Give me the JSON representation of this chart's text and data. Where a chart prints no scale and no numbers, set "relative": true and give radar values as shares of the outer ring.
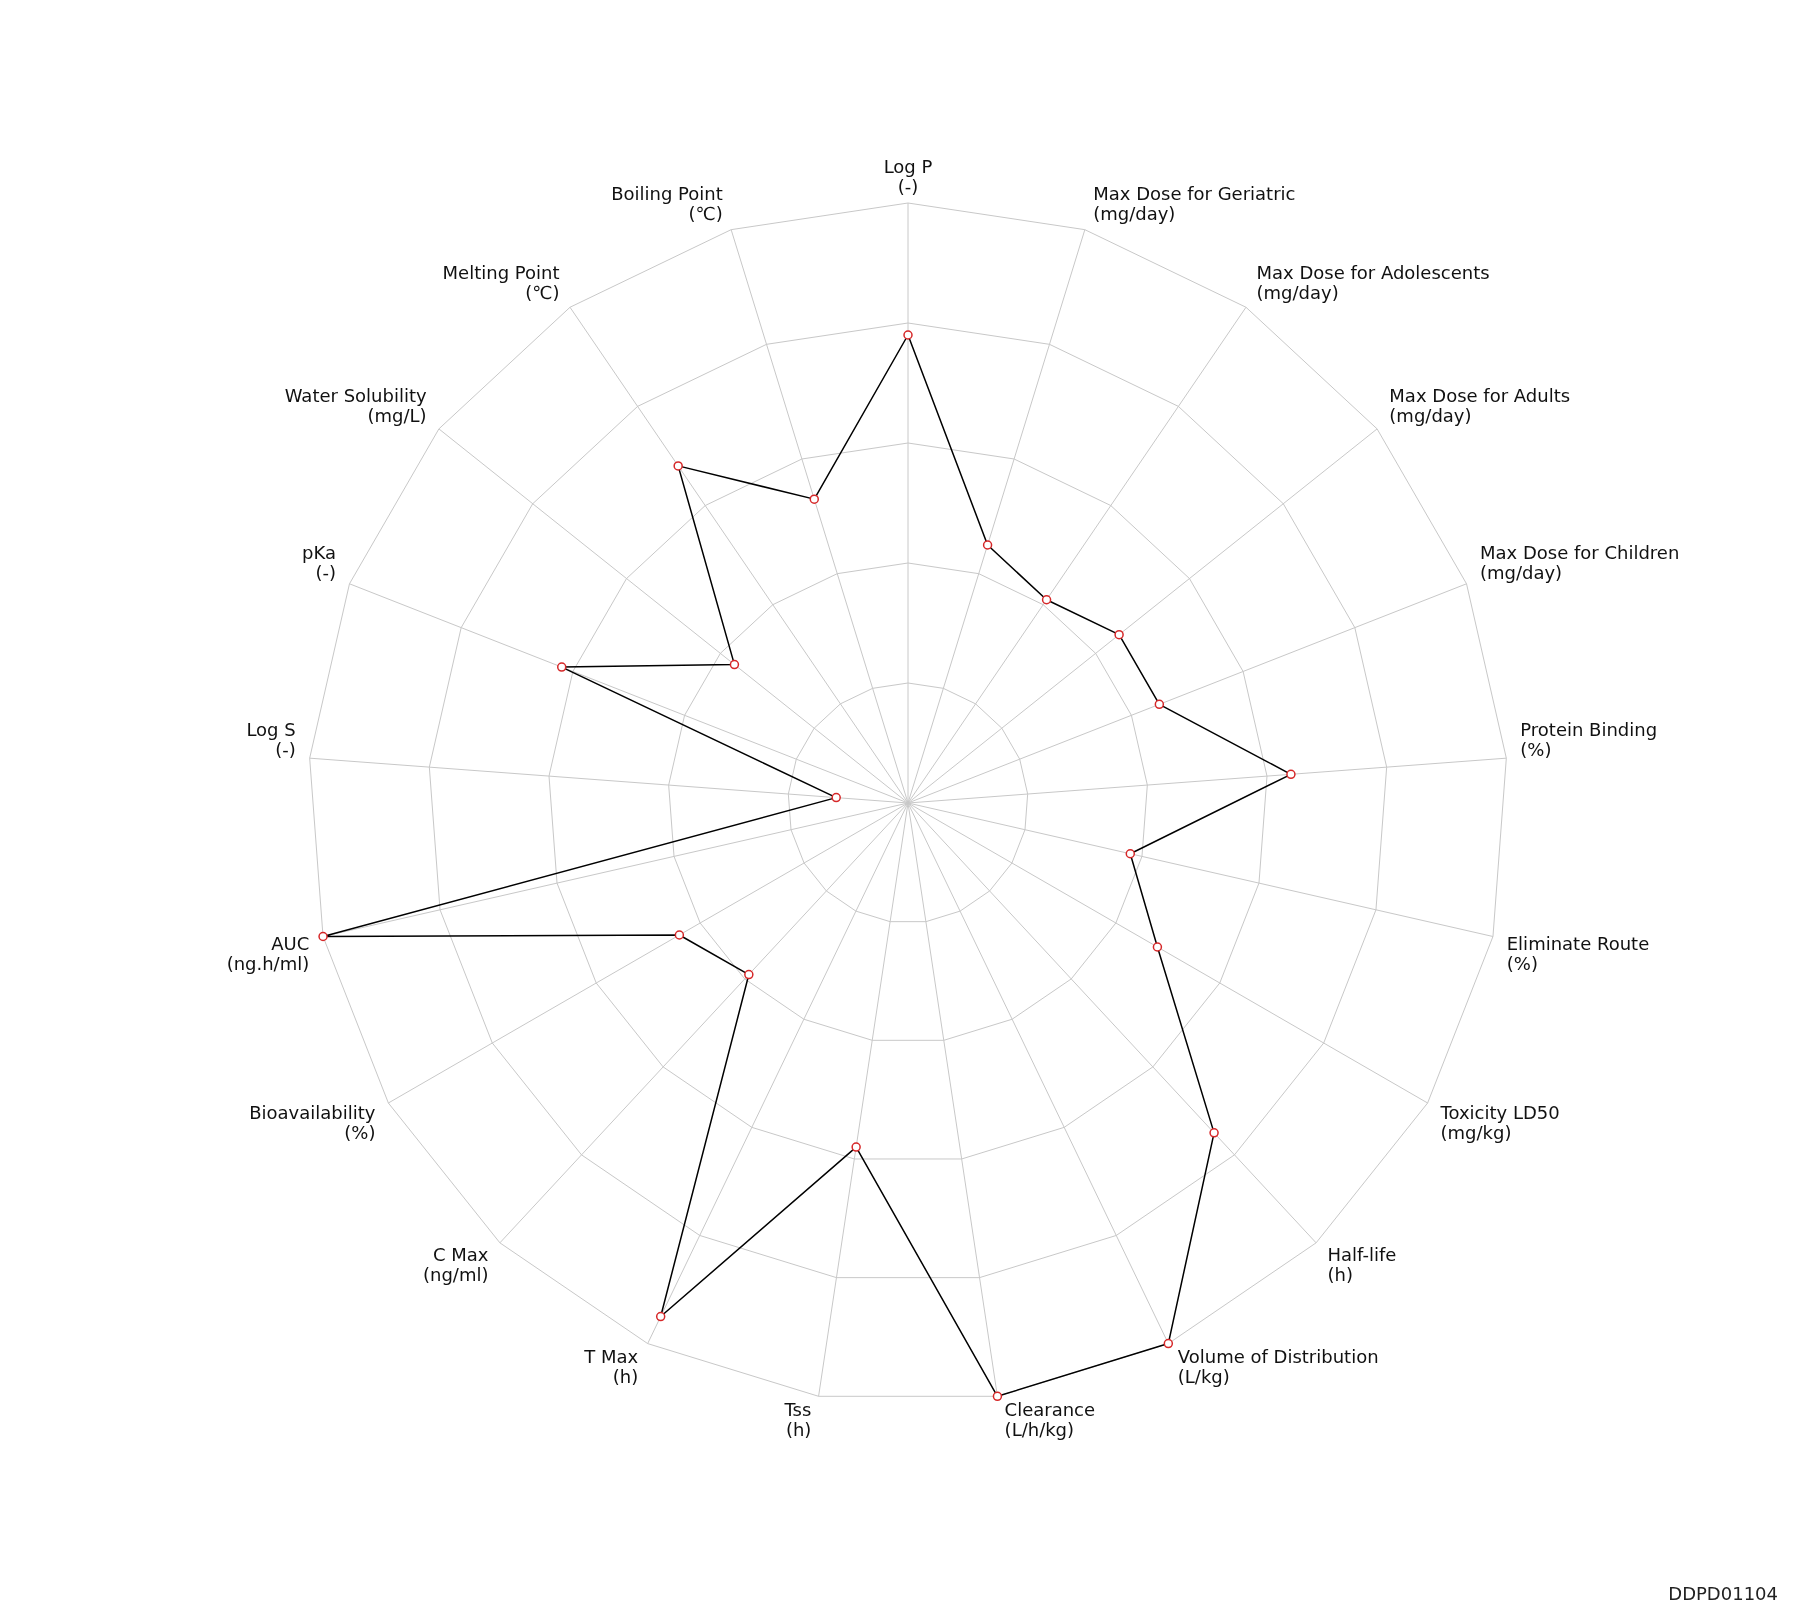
{
  "chart_data": {
    "type": "radar",
    "relative": true,
    "marker": "circle",
    "grid": true,
    "categories": [
      "Log P\n(-)",
      "Max Dose for Geriatric\n(mg/day)",
      "Max Dose for Adolescents\n(mg/day)",
      "Max Dose for Adults\n(mg/day)",
      "Max Dose for Children\n(mg/day)",
      "Protein Binding\n(%)",
      "Eliminate Route\n(%)",
      "Toxicity LD50\n(mg/kg)",
      "Half-life\n(h)",
      "Volume of Distribution\n(L/kg)",
      "Clearance\n(L/h/kg)",
      "Tss\n(h)",
      "T Max\n(h)",
      "C Max\n(ng/ml)",
      "Bioavailability\n(%)",
      "AUC\n(ng.h/ml)",
      "Log S\n(-)",
      "pKa\n(-)",
      "Water Solubility\n(mg/L)",
      "Melting Point\n(℃)",
      "Boiling Point\n(℃)"
    ],
    "series": [
      {
        "color": "#000000",
        "values": [
          0.78,
          0.45,
          0.41,
          0.45,
          0.45,
          0.64,
          0.38,
          0.48,
          0.75,
          1.0,
          1.0,
          0.58,
          0.95,
          0.39,
          0.44,
          1.0,
          0.12,
          0.62,
          0.37,
          0.68,
          0.53
        ]
      }
    ],
    "annotations": [
      "DDPD01104"
    ]
  }
}
